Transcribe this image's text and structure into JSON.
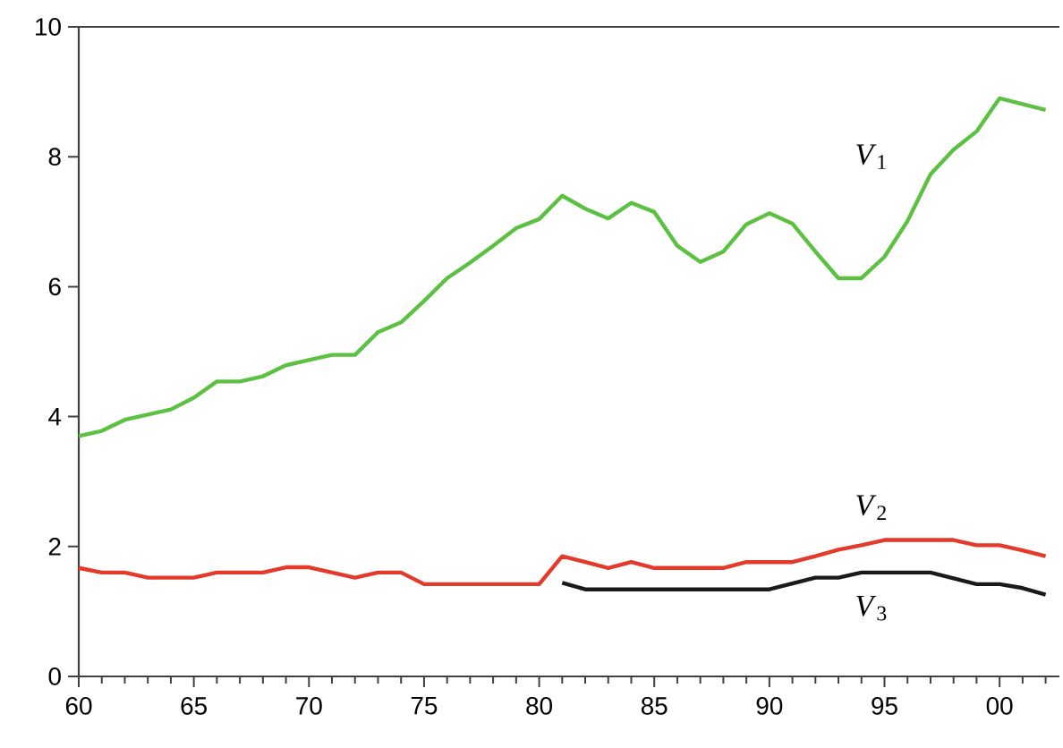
{
  "chart_data": {
    "type": "line",
    "x": [
      1960,
      1961,
      1962,
      1963,
      1964,
      1965,
      1966,
      1967,
      1968,
      1969,
      1970,
      1971,
      1972,
      1973,
      1974,
      1975,
      1976,
      1977,
      1978,
      1979,
      1980,
      1981,
      1982,
      1983,
      1984,
      1985,
      1986,
      1987,
      1988,
      1989,
      1990,
      1991,
      1992,
      1993,
      1994,
      1995,
      1996,
      1997,
      1998,
      1999,
      2000,
      2001,
      2002
    ],
    "series": [
      {
        "name": "*V*$_{1}$",
        "color": "#5cc142",
        "values": [
          3.7,
          3.78,
          3.95,
          4.03,
          4.11,
          4.29,
          4.54,
          4.54,
          4.62,
          4.79,
          4.87,
          4.95,
          4.95,
          5.3,
          5.45,
          5.78,
          6.13,
          6.37,
          6.63,
          6.9,
          7.04,
          7.4,
          7.2,
          7.05,
          7.29,
          7.15,
          6.63,
          6.38,
          6.54,
          6.96,
          7.13,
          6.97,
          6.54,
          6.13,
          6.13,
          6.46,
          7.01,
          7.73,
          8.11,
          8.39,
          8.9,
          8.81,
          8.72
        ]
      },
      {
        "name": "*V*$_{2}$",
        "color": "#e43a2c",
        "values": [
          1.67,
          1.6,
          1.6,
          1.52,
          1.52,
          1.52,
          1.6,
          1.6,
          1.6,
          1.68,
          1.68,
          1.6,
          1.52,
          1.6,
          1.6,
          1.42,
          1.42,
          1.42,
          1.42,
          1.42,
          1.42,
          1.85,
          1.76,
          1.67,
          1.76,
          1.67,
          1.67,
          1.67,
          1.67,
          1.76,
          1.76,
          1.76,
          1.85,
          1.95,
          2.02,
          2.1,
          2.1,
          2.1,
          2.1,
          2.02,
          2.02,
          1.94,
          1.85
        ]
      },
      {
        "name": "*V*$_{3}$",
        "color": "#1a1a1a",
        "x": [
          1981,
          1982,
          1983,
          1984,
          1985,
          1986,
          1987,
          1988,
          1989,
          1990,
          1991,
          1992,
          1993,
          1994,
          1995,
          1996,
          1997,
          1998,
          1999,
          2000,
          2001,
          2002
        ],
        "values": [
          1.44,
          1.34,
          1.34,
          1.34,
          1.34,
          1.34,
          1.34,
          1.34,
          1.34,
          1.34,
          1.43,
          1.52,
          1.52,
          1.6,
          1.6,
          1.6,
          1.6,
          1.51,
          1.42,
          1.42,
          1.36,
          1.26
        ]
      }
    ],
    "xlim": [
      1960,
      2002.6
    ],
    "xticks": [
      {
        "value": 1960,
        "label": "60"
      },
      {
        "value": 1961,
        "label": null
      },
      {
        "value": 1962,
        "label": null
      },
      {
        "value": 1963,
        "label": null
      },
      {
        "value": 1964,
        "label": null
      },
      {
        "value": 1965,
        "label": "65"
      },
      {
        "value": 1966,
        "label": null
      },
      {
        "value": 1967,
        "label": null
      },
      {
        "value": 1968,
        "label": null
      },
      {
        "value": 1969,
        "label": null
      },
      {
        "value": 1970,
        "label": "70"
      },
      {
        "value": 1971,
        "label": null
      },
      {
        "value": 1972,
        "label": null
      },
      {
        "value": 1973,
        "label": null
      },
      {
        "value": 1974,
        "label": null
      },
      {
        "value": 1975,
        "label": "75"
      },
      {
        "value": 1976,
        "label": null
      },
      {
        "value": 1977,
        "label": null
      },
      {
        "value": 1978,
        "label": null
      },
      {
        "value": 1979,
        "label": null
      },
      {
        "value": 1980,
        "label": "80"
      },
      {
        "value": 1981,
        "label": null
      },
      {
        "value": 1982,
        "label": null
      },
      {
        "value": 1983,
        "label": null
      },
      {
        "value": 1984,
        "label": null
      },
      {
        "value": 1985,
        "label": "85"
      },
      {
        "value": 1986,
        "label": null
      },
      {
        "value": 1987,
        "label": null
      },
      {
        "value": 1988,
        "label": null
      },
      {
        "value": 1989,
        "label": null
      },
      {
        "value": 1990,
        "label": "90"
      },
      {
        "value": 1991,
        "label": null
      },
      {
        "value": 1992,
        "label": null
      },
      {
        "value": 1993,
        "label": null
      },
      {
        "value": 1994,
        "label": null
      },
      {
        "value": 1995,
        "label": "95"
      },
      {
        "value": 1996,
        "label": null
      },
      {
        "value": 1997,
        "label": null
      },
      {
        "value": 1998,
        "label": null
      },
      {
        "value": 1999,
        "label": null
      },
      {
        "value": 2000,
        "label": "00"
      },
      {
        "value": 2001,
        "label": null
      },
      {
        "value": 2002,
        "label": null
      }
    ],
    "ylim": [
      0,
      10
    ],
    "yticks": [
      0,
      2,
      4,
      6,
      8,
      10
    ],
    "line_style": "solid"
  }
}
